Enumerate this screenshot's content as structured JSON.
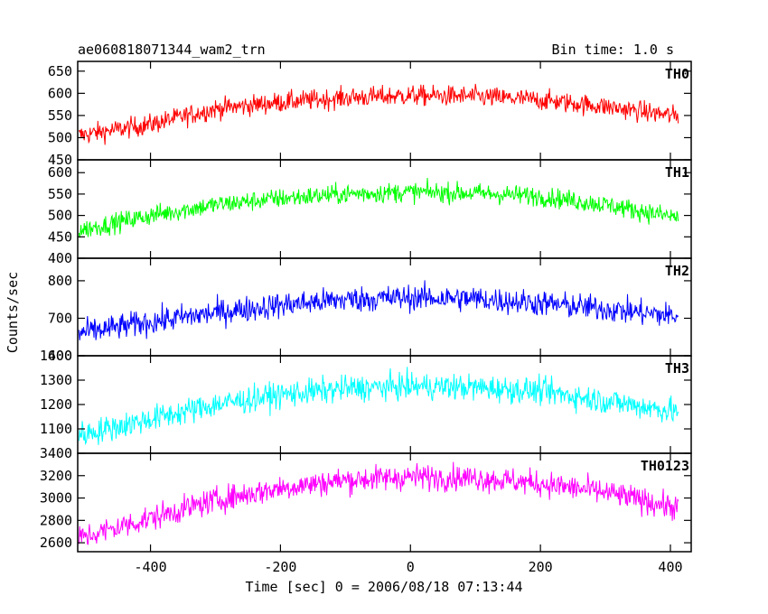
{
  "header": {
    "title": "ae060818071344_wam2_trn",
    "bin_time": "Bin time: 1.0 s"
  },
  "chart_data": {
    "type": "line",
    "title": "ae060818071344_wam2_trn",
    "xlabel": "Time [sec] 0 = 2006/08/18 07:13:44",
    "ylabel": "Counts/sec",
    "xlim": [
      -512,
      432
    ],
    "xticks": [
      -400,
      -200,
      0,
      200,
      400
    ],
    "grid": false,
    "panels": [
      {
        "name": "TH0",
        "color": "#ff0000",
        "ylim": [
          450,
          672
        ],
        "yticks": [
          450,
          500,
          550,
          600,
          650
        ],
        "profile": {
          "x": [
            -510,
            -400,
            -300,
            -200,
            -100,
            0,
            100,
            200,
            300,
            412
          ],
          "y": [
            505,
            530,
            565,
            580,
            590,
            595,
            593,
            585,
            570,
            548
          ]
        },
        "noise": 30
      },
      {
        "name": "TH1",
        "color": "#00ff00",
        "ylim": [
          400,
          630
        ],
        "yticks": [
          400,
          450,
          500,
          550,
          600
        ],
        "profile": {
          "x": [
            -510,
            -400,
            -300,
            -200,
            -100,
            0,
            100,
            200,
            300,
            412
          ],
          "y": [
            465,
            500,
            525,
            540,
            550,
            555,
            552,
            545,
            525,
            495
          ]
        },
        "noise": 30
      },
      {
        "name": "TH2",
        "color": "#0000ff",
        "ylim": [
          600,
          860
        ],
        "yticks": [
          600,
          700,
          800
        ],
        "profile": {
          "x": [
            -510,
            -400,
            -300,
            -200,
            -100,
            0,
            100,
            200,
            300,
            412
          ],
          "y": [
            660,
            690,
            715,
            735,
            750,
            755,
            752,
            740,
            725,
            705
          ]
        },
        "noise": 45
      },
      {
        "name": "TH3",
        "color": "#00ffff",
        "ylim": [
          1000,
          1400
        ],
        "yticks": [
          1100,
          1200,
          1300,
          1400
        ],
        "profile": {
          "x": [
            -510,
            -400,
            -300,
            -200,
            -100,
            0,
            100,
            200,
            300,
            412
          ],
          "y": [
            1075,
            1140,
            1200,
            1240,
            1265,
            1275,
            1270,
            1255,
            1215,
            1170
          ]
        },
        "noise": 70
      },
      {
        "name": "TH0123",
        "color": "#ff00ff",
        "ylim": [
          2520,
          3400
        ],
        "yticks": [
          2600,
          2800,
          3000,
          3200,
          3400
        ],
        "profile": {
          "x": [
            -510,
            -400,
            -300,
            -200,
            -100,
            0,
            100,
            200,
            300,
            412
          ],
          "y": [
            2640,
            2820,
            2980,
            3090,
            3160,
            3190,
            3180,
            3130,
            3050,
            2910
          ]
        },
        "noise": 150
      }
    ]
  }
}
